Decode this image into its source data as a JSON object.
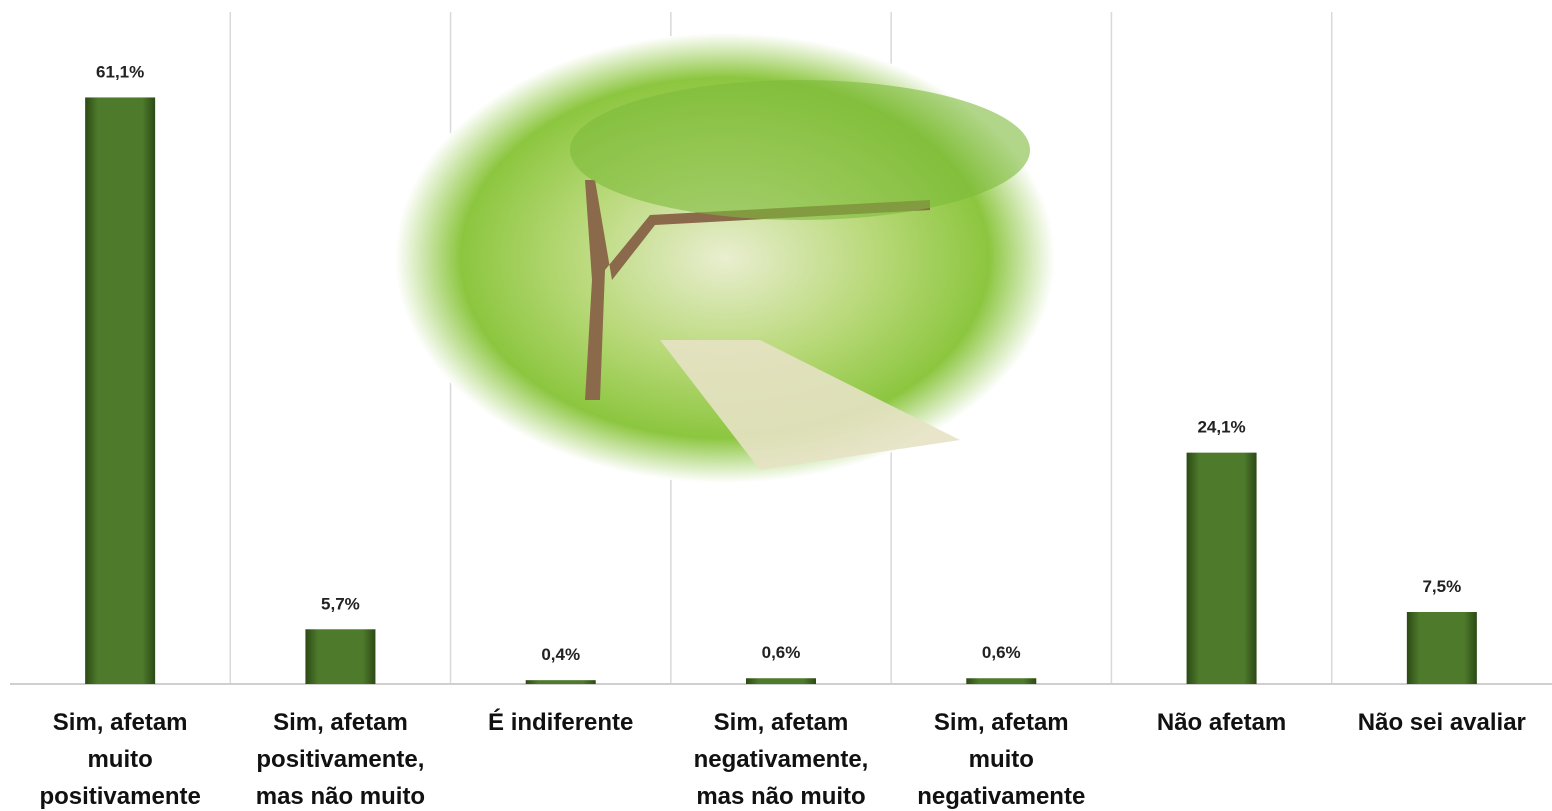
{
  "chart_data": {
    "type": "bar",
    "categories": [
      "Sim, afetam muito positivamente",
      "Sim, afetam positivamente, mas não muito",
      "É indiferente",
      "Sim, afetam negativamente, mas não muito",
      "Sim, afetam muito negativamente",
      "Não afetam",
      "Não sei avaliar"
    ],
    "values": [
      61.1,
      5.7,
      0.4,
      0.6,
      0.6,
      24.1,
      7.5
    ],
    "value_labels": [
      "61,1%",
      "5,7%",
      "0,4%",
      "0,6%",
      "0,6%",
      "24,1%",
      "7,5%"
    ],
    "color": "#4e7a2c",
    "ylim": [
      0,
      70
    ]
  }
}
